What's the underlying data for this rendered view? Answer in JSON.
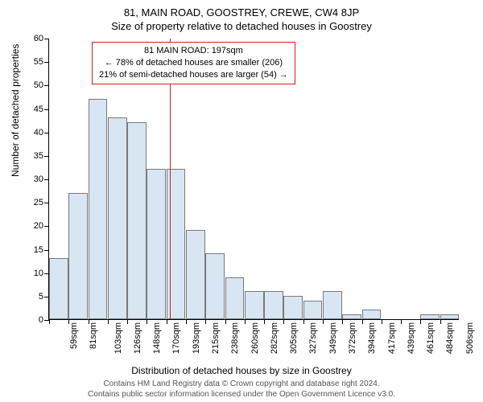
{
  "header": {
    "address": "81, MAIN ROAD, GOOSTREY, CREWE, CW4 8JP",
    "subtitle": "Size of property relative to detached houses in Goostrey"
  },
  "chart": {
    "type": "histogram",
    "background_color": "#ffffff",
    "bar_fill": "#d8e5f3",
    "bar_stroke": "#7a7a7a",
    "ref_line_color": "#d02020",
    "ylim": [
      0,
      60
    ],
    "ytick_step": 5,
    "y_ticks": [
      0,
      5,
      10,
      15,
      20,
      25,
      30,
      35,
      40,
      45,
      50,
      55,
      60
    ],
    "x_categories": [
      "59sqm",
      "81sqm",
      "103sqm",
      "126sqm",
      "148sqm",
      "170sqm",
      "193sqm",
      "215sqm",
      "238sqm",
      "260sqm",
      "282sqm",
      "305sqm",
      "327sqm",
      "349sqm",
      "372sqm",
      "394sqm",
      "417sqm",
      "439sqm",
      "461sqm",
      "484sqm",
      "506sqm"
    ],
    "values": [
      13,
      27,
      47,
      43,
      42,
      32,
      32,
      19,
      14,
      9,
      6,
      6,
      5,
      4,
      6,
      1,
      2,
      0,
      0,
      1,
      1
    ],
    "reference_x_value": 197,
    "x_start": 59,
    "x_step": 22.35,
    "y_axis_title": "Number of detached properties",
    "x_axis_title": "Distribution of detached houses by size in Goostrey",
    "label_fontsize": 11,
    "axis_title_fontsize": 12
  },
  "info_box": {
    "line1": "81 MAIN ROAD: 197sqm",
    "line2": "← 78% of detached houses are smaller (206)",
    "line3": "21% of semi-detached houses are larger (54) →"
  },
  "footer": {
    "line1": "Contains HM Land Registry data © Crown copyright and database right 2024.",
    "line2": "Contains public sector information licensed under the Open Government Licence v3.0."
  }
}
